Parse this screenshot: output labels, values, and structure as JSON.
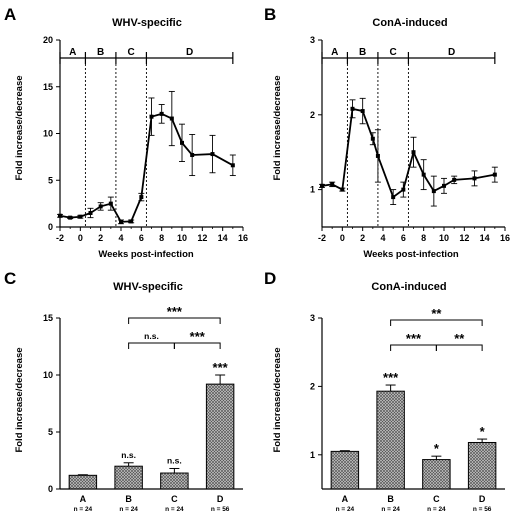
{
  "chart_data": [
    {
      "id": "A",
      "type": "line",
      "title": "WHV-specific",
      "xlabel": "Weeks post-infection",
      "ylabel": "Fold increase/decrease",
      "xlim": [
        -2,
        16
      ],
      "ylim": [
        0,
        20
      ],
      "xticks": [
        "-2",
        "0",
        "2",
        "4",
        "6",
        "8",
        "10",
        "12",
        "14",
        "16"
      ],
      "yticks": [
        "0",
        "5",
        "10",
        "15",
        "20"
      ],
      "segments": [
        {
          "label": "A",
          "start": -2,
          "end": 0.5
        },
        {
          "label": "B",
          "start": 0.5,
          "end": 3.5
        },
        {
          "label": "C",
          "start": 3.5,
          "end": 6.5
        },
        {
          "label": "D",
          "start": 6.5,
          "end": 15
        }
      ],
      "points": [
        {
          "x": -2,
          "y": 1.2,
          "err": 0.15
        },
        {
          "x": -1,
          "y": 1.0,
          "err": 0.1
        },
        {
          "x": 0,
          "y": 1.1,
          "err": 0.15
        },
        {
          "x": 1,
          "y": 1.5,
          "err": 0.5
        },
        {
          "x": 2,
          "y": 2.2,
          "err": 0.4
        },
        {
          "x": 3,
          "y": 2.5,
          "err": 0.7
        },
        {
          "x": 4,
          "y": 0.55,
          "err": 0.2
        },
        {
          "x": 5,
          "y": 0.6,
          "err": 0.15
        },
        {
          "x": 6,
          "y": 3.2,
          "err": 0.4
        },
        {
          "x": 7,
          "y": 11.8,
          "err": 2.0
        },
        {
          "x": 8,
          "y": 12.1,
          "err": 1.0
        },
        {
          "x": 9,
          "y": 11.6,
          "err": 2.9
        },
        {
          "x": 10,
          "y": 9.0,
          "err": 2.0
        },
        {
          "x": 11,
          "y": 7.7,
          "err": 2.2
        },
        {
          "x": 13,
          "y": 7.8,
          "err": 2.0
        },
        {
          "x": 15,
          "y": 6.6,
          "err": 1.1
        }
      ]
    },
    {
      "id": "B",
      "type": "line",
      "title": "ConA-induced",
      "xlabel": "Weeks post-infection",
      "ylabel": "Fold increase/decrease",
      "xlim": [
        -2,
        16
      ],
      "ylim": [
        0.5,
        3
      ],
      "xticks": [
        "-2",
        "0",
        "2",
        "4",
        "6",
        "8",
        "10",
        "12",
        "14",
        "16"
      ],
      "yticks": [
        "1",
        "2",
        "3"
      ],
      "segments": [
        {
          "label": "A",
          "start": -2,
          "end": 0.5
        },
        {
          "label": "B",
          "start": 0.5,
          "end": 3.5
        },
        {
          "label": "C",
          "start": 3.5,
          "end": 6.5
        },
        {
          "label": "D",
          "start": 6.5,
          "end": 15
        }
      ],
      "points": [
        {
          "x": -2,
          "y": 1.05,
          "err": 0.02
        },
        {
          "x": -1,
          "y": 1.07,
          "err": 0.03
        },
        {
          "x": 0,
          "y": 1.0,
          "err": 0.02
        },
        {
          "x": 1,
          "y": 2.08,
          "err": 0.12
        },
        {
          "x": 2,
          "y": 2.05,
          "err": 0.17
        },
        {
          "x": 3,
          "y": 1.68,
          "err": 0.08
        },
        {
          "x": 3.5,
          "y": 1.45,
          "err": 0.35
        },
        {
          "x": 5,
          "y": 0.9,
          "err": 0.1
        },
        {
          "x": 6,
          "y": 1.0,
          "err": 0.1
        },
        {
          "x": 7,
          "y": 1.5,
          "err": 0.2
        },
        {
          "x": 8,
          "y": 1.2,
          "err": 0.2
        },
        {
          "x": 9,
          "y": 0.98,
          "err": 0.2
        },
        {
          "x": 10,
          "y": 1.05,
          "err": 0.1
        },
        {
          "x": 11,
          "y": 1.13,
          "err": 0.05
        },
        {
          "x": 13,
          "y": 1.15,
          "err": 0.1
        },
        {
          "x": 15,
          "y": 1.2,
          "err": 0.1
        }
      ]
    },
    {
      "id": "C",
      "type": "bar",
      "title": "WHV-specific",
      "ylabel": "Fold increase/decrease",
      "ylim": [
        0,
        15
      ],
      "yticks": [
        "0",
        "5",
        "10",
        "15"
      ],
      "categories": [
        "A",
        "B",
        "C",
        "D"
      ],
      "n_labels": [
        "n = 24",
        "n = 24",
        "n = 24",
        "n = 56"
      ],
      "values": [
        1.2,
        2.0,
        1.4,
        9.2
      ],
      "errors": [
        0.05,
        0.3,
        0.4,
        0.8
      ],
      "bar_labels": [
        "",
        "n.s.",
        "n.s.",
        "***"
      ],
      "comparisons": [
        {
          "from": "B",
          "to": "D",
          "label": "***"
        },
        {
          "from": "B",
          "to": "C",
          "label": "n.s."
        },
        {
          "from": "C",
          "to": "D",
          "label": "***"
        }
      ]
    },
    {
      "id": "D",
      "type": "bar",
      "title": "ConA-induced",
      "ylabel": "Fold increase/decrease",
      "ylim": [
        0.5,
        3
      ],
      "yticks": [
        "1",
        "2",
        "3"
      ],
      "categories": [
        "A",
        "B",
        "C",
        "D"
      ],
      "n_labels": [
        "n = 24",
        "n = 24",
        "n = 24",
        "n = 56"
      ],
      "values": [
        1.05,
        1.93,
        0.93,
        1.18
      ],
      "errors": [
        0.01,
        0.09,
        0.05,
        0.05
      ],
      "bar_labels": [
        "",
        "***",
        "*",
        "*"
      ],
      "comparisons": [
        {
          "from": "B",
          "to": "D",
          "label": "**"
        },
        {
          "from": "B",
          "to": "C",
          "label": "***"
        },
        {
          "from": "C",
          "to": "D",
          "label": "**"
        }
      ]
    }
  ]
}
